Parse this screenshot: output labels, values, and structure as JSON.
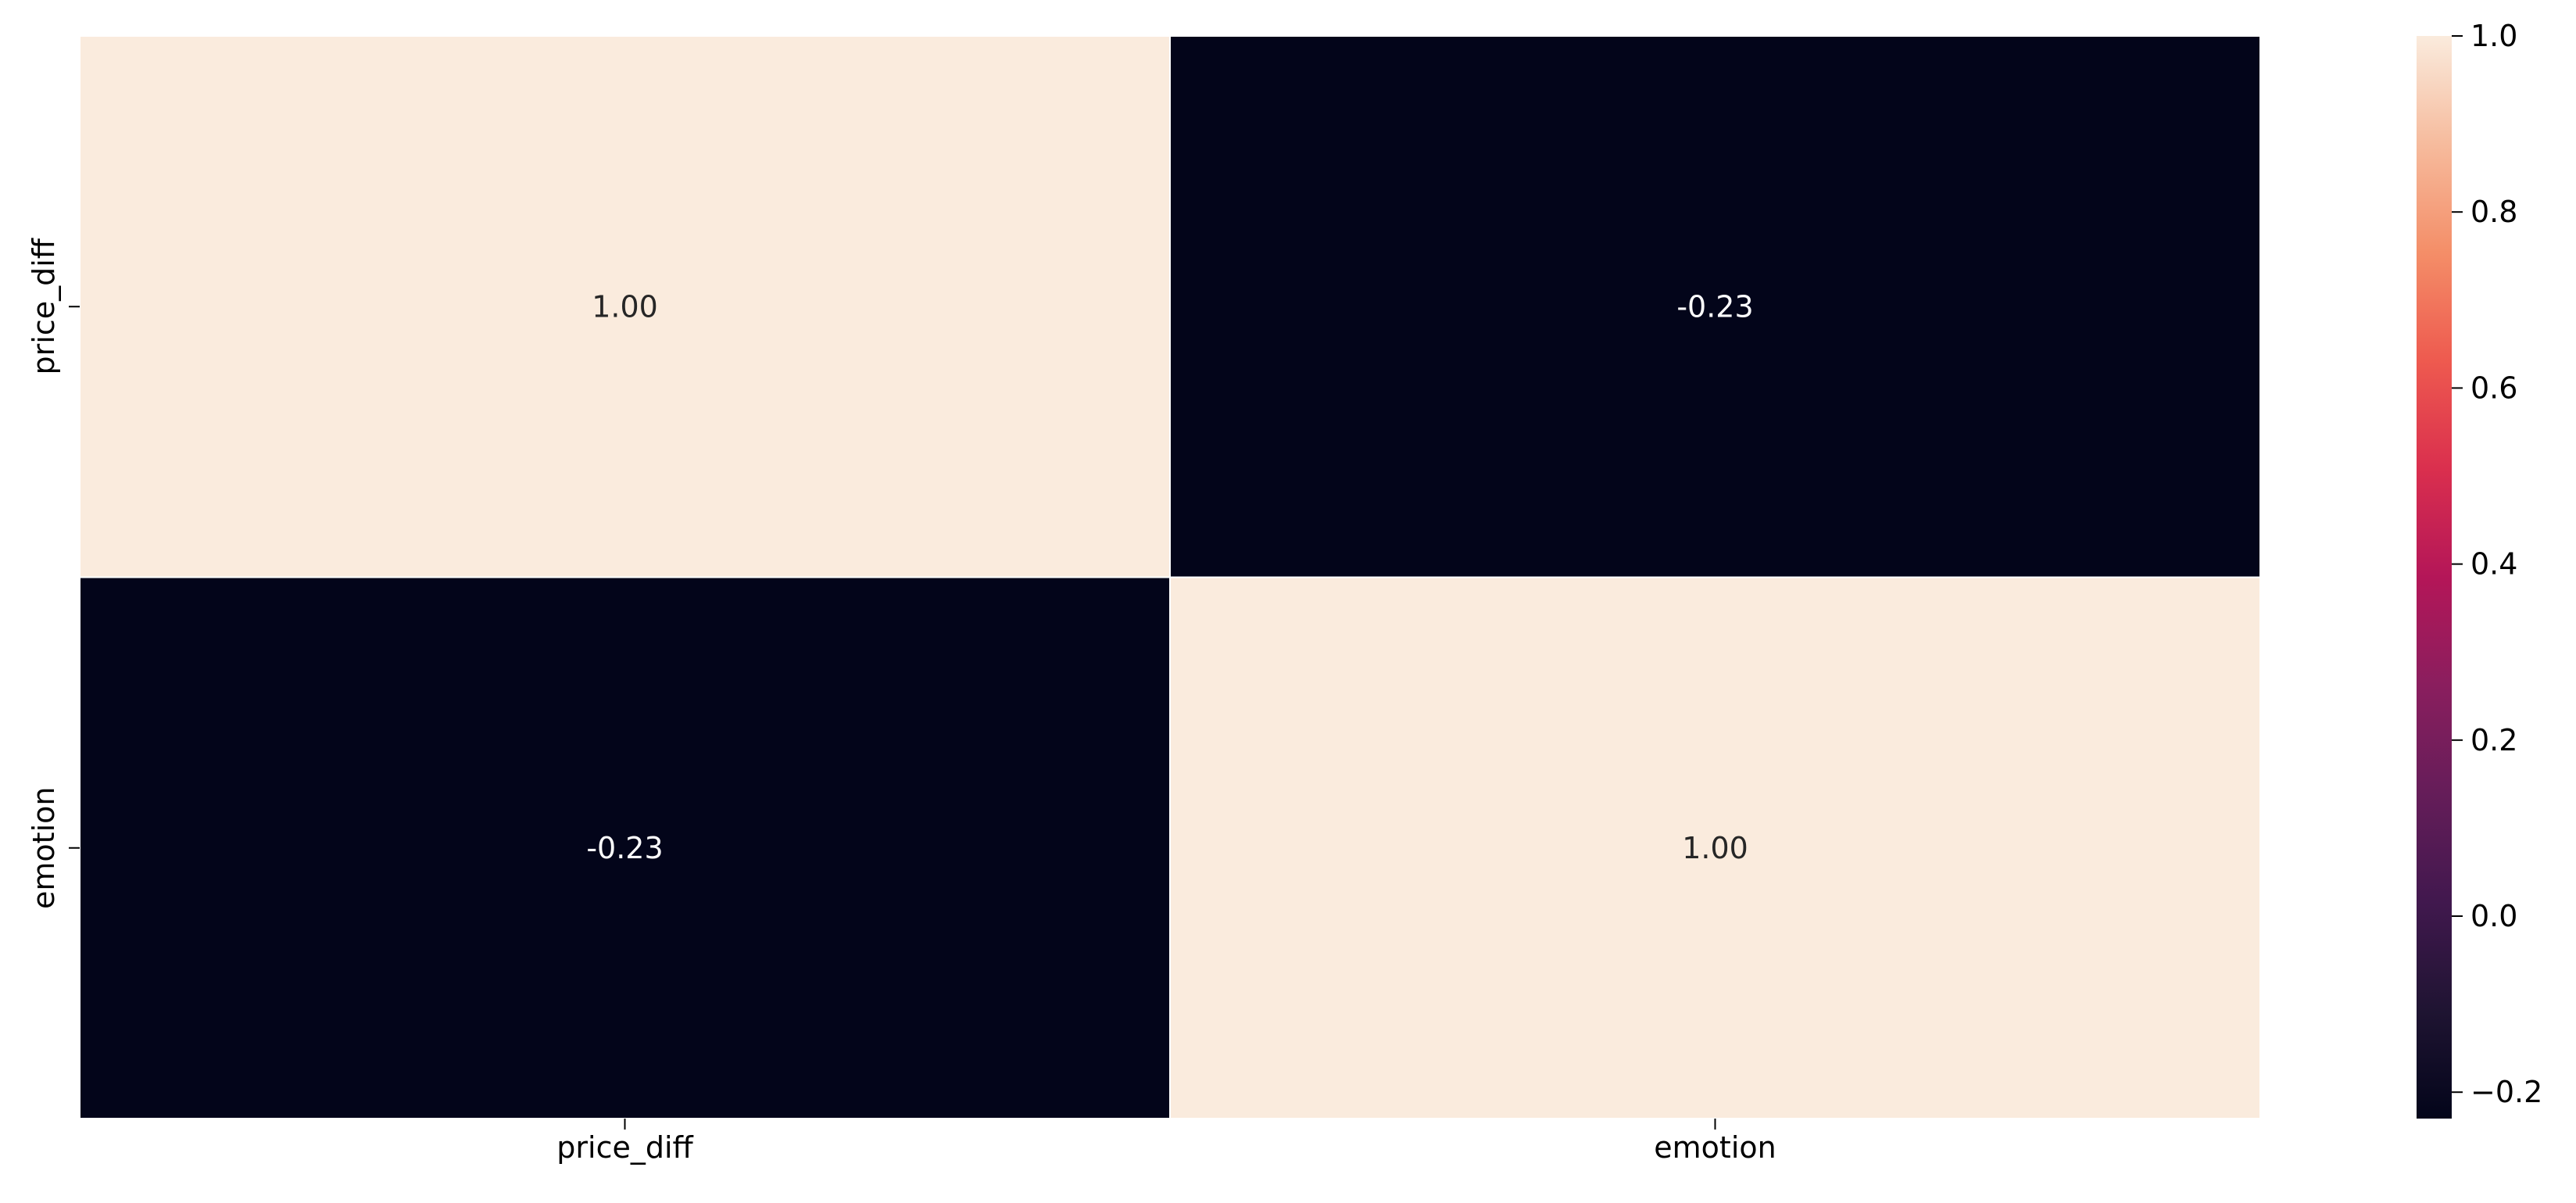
{
  "chart_data": {
    "type": "heatmap",
    "title": "",
    "xlabel": "",
    "ylabel": "",
    "x_categories": [
      "price_diff",
      "emotion"
    ],
    "y_categories": [
      "price_diff",
      "emotion"
    ],
    "values": [
      [
        1.0,
        -0.23
      ],
      [
        -0.23,
        1.0
      ]
    ],
    "annotations": [
      [
        "1.00",
        "-0.23"
      ],
      [
        "-0.23",
        "1.00"
      ]
    ],
    "colormap": "rocket",
    "colorbar": {
      "vmin": -0.23,
      "vmax": 1.0,
      "ticks": [
        -0.2,
        0.0,
        0.2,
        0.4,
        0.6,
        0.8,
        1.0
      ],
      "tick_labels": [
        "−0.2",
        "0.0",
        "0.2",
        "0.4",
        "0.6",
        "0.8",
        "1.0"
      ],
      "placement": "right"
    },
    "colors": {
      "low": "#03051a",
      "high": "#faebdd",
      "grid_line": "#ffffff",
      "annotation_on_dark": "#ffffff",
      "annotation_on_light": "#262626"
    }
  }
}
